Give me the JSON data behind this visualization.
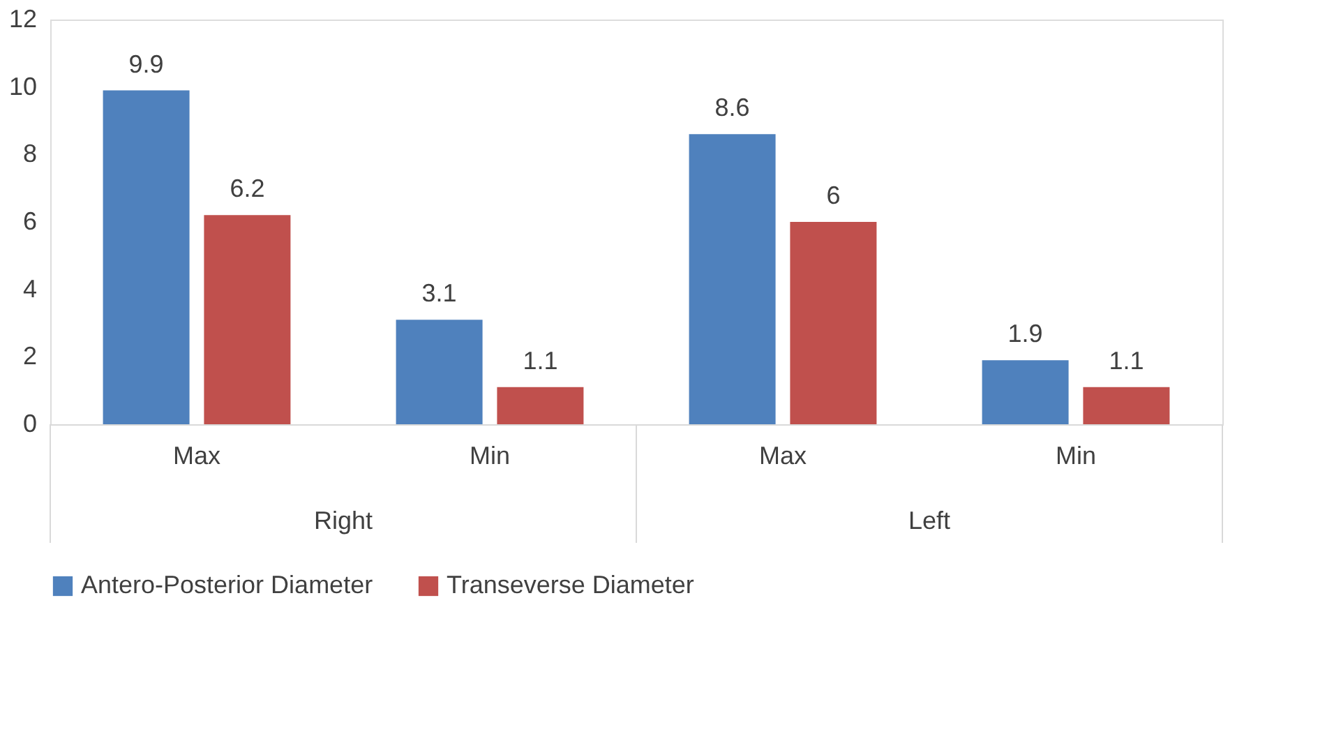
{
  "chart_data": {
    "type": "bar",
    "categories": [
      "Max",
      "Min",
      "Max",
      "Min"
    ],
    "series": [
      {
        "name": "Antero-Posterior Diameter",
        "color": "#4f81bd",
        "values": [
          9.9,
          3.1,
          8.6,
          1.9
        ]
      },
      {
        "name": "Transeverse Diameter",
        "color": "#c0504d",
        "values": [
          6.2,
          1.1,
          6,
          1.1
        ]
      }
    ],
    "annotations": [
      "Right",
      "Left"
    ],
    "ylim": [
      0,
      12
    ],
    "yticks": [
      0,
      2,
      4,
      6,
      8,
      10,
      12
    ],
    "grid": false,
    "legend": "bottom",
    "data_labels": true
  }
}
